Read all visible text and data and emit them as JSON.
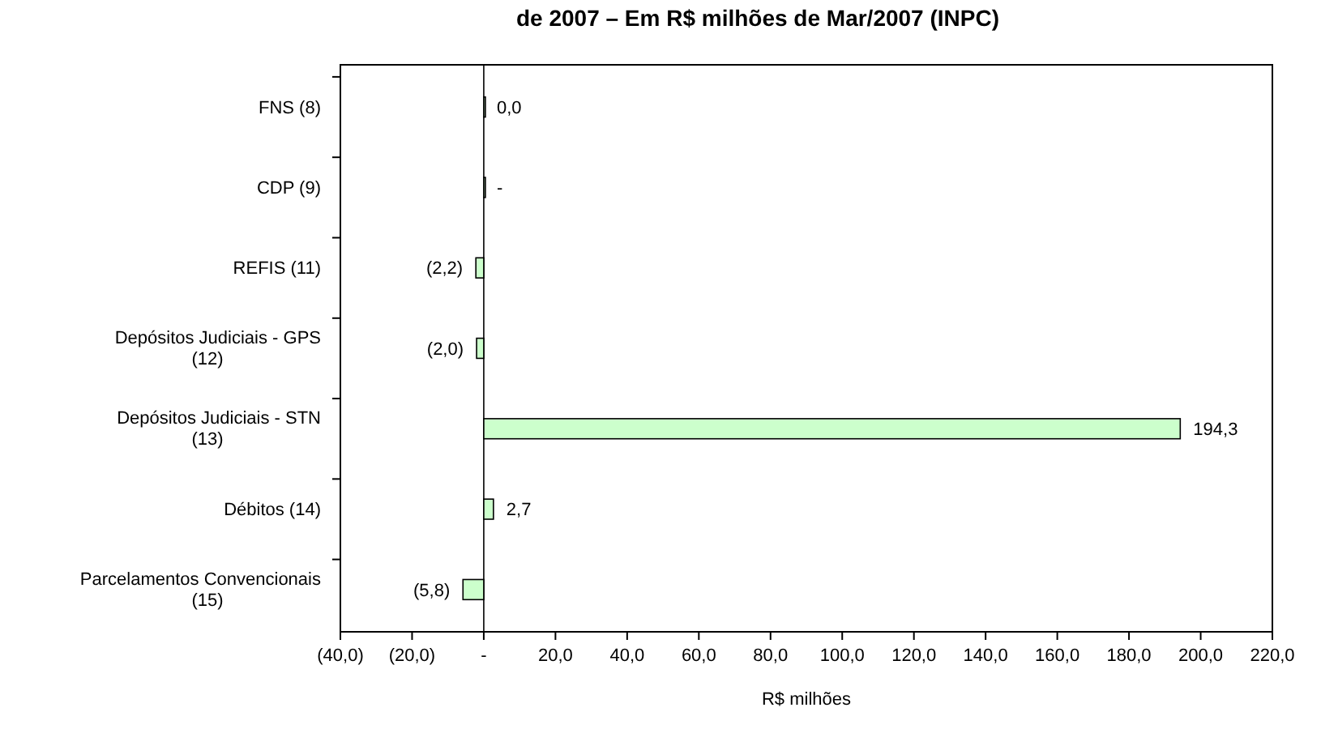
{
  "chart_data": {
    "type": "bar",
    "orientation": "horizontal",
    "title": "de 2007 – Em R$ milhões de Mar/2007 (INPC)",
    "xlabel": "R$ milhões",
    "categories": [
      "FNS (8)",
      "CDP (9)",
      "REFIS (11)",
      "Depósitos Judiciais - GPS (12)",
      "Depósitos Judiciais - STN (13)",
      "Débitos  (14)",
      "Parcelamentos Convencionais (15)"
    ],
    "values": [
      0,
      0,
      -2.2,
      -2.0,
      194.3,
      2.7,
      -5.8
    ],
    "value_labels": [
      "0,0",
      "-",
      "(2,2)",
      "(2,0)",
      "194,3",
      "2,7",
      "(5,8)"
    ],
    "color": "#ccffcc",
    "xlim": [
      -40,
      220
    ],
    "xticks": [
      {
        "value": -40,
        "label": "(40,0)"
      },
      {
        "value": -20,
        "label": "(20,0)"
      },
      {
        "value": 0,
        "label": "-"
      },
      {
        "value": 20,
        "label": "20,0"
      },
      {
        "value": 40,
        "label": "40,0"
      },
      {
        "value": 60,
        "label": "60,0"
      },
      {
        "value": 80,
        "label": "80,0"
      },
      {
        "value": 100,
        "label": "100,0"
      },
      {
        "value": 120,
        "label": "120,0"
      },
      {
        "value": 140,
        "label": "140,0"
      },
      {
        "value": 160,
        "label": "160,0"
      },
      {
        "value": 180,
        "label": "180,0"
      },
      {
        "value": 200,
        "label": "200,0"
      },
      {
        "value": 220,
        "label": "220,0"
      }
    ]
  }
}
